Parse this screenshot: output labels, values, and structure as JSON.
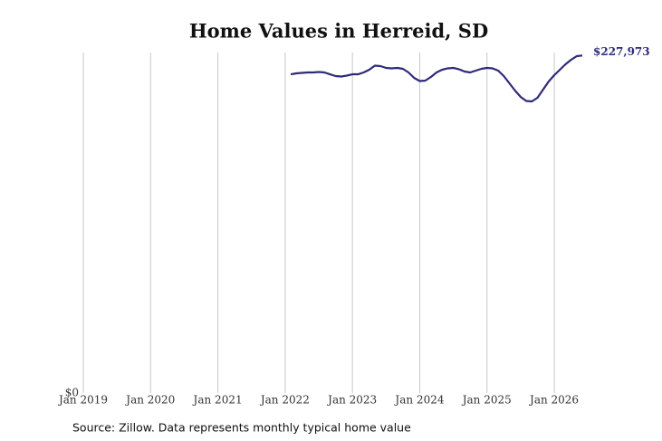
{
  "chart_data": {
    "type": "line",
    "title": "Home Values in Herreid, SD",
    "source": "Source: Zillow. Data represents monthly typical home value",
    "x": [
      "2022-02",
      "2022-03",
      "2022-04",
      "2022-05",
      "2022-06",
      "2022-07",
      "2022-08",
      "2022-09",
      "2022-10",
      "2022-11",
      "2022-12",
      "2023-01",
      "2023-02",
      "2023-03",
      "2023-04",
      "2023-05",
      "2023-06",
      "2023-07",
      "2023-08",
      "2023-09",
      "2023-10",
      "2023-11",
      "2023-12",
      "2024-01",
      "2024-02",
      "2024-03",
      "2024-04",
      "2024-05",
      "2024-06",
      "2024-07",
      "2024-08",
      "2024-09",
      "2024-10",
      "2024-11",
      "2024-12",
      "2025-01",
      "2025-02",
      "2025-03",
      "2025-04",
      "2025-05",
      "2025-06",
      "2025-07",
      "2025-08",
      "2025-09",
      "2025-10",
      "2025-11",
      "2025-12",
      "2026-01",
      "2026-02",
      "2026-03",
      "2026-04",
      "2026-05",
      "2026-06"
    ],
    "series": [
      {
        "name": "Home value",
        "color": "#2e2a7a",
        "values": [
          215300,
          215930,
          216240,
          216540,
          216540,
          216850,
          216540,
          215300,
          214100,
          213790,
          214400,
          215300,
          215300,
          216540,
          218380,
          221130,
          220820,
          219600,
          219300,
          219600,
          218990,
          216540,
          212870,
          210730,
          211040,
          213490,
          216540,
          218380,
          219300,
          219600,
          218690,
          217160,
          216540,
          217770,
          218990,
          219600,
          219300,
          217770,
          214100,
          209200,
          204310,
          200030,
          197270,
          196970,
          199410,
          204920,
          210420,
          214710,
          218380,
          222050,
          225110,
          227550,
          227973
        ],
        "value_labels": [
          null,
          null,
          null,
          null,
          null,
          null,
          null,
          null,
          null,
          null,
          null,
          null,
          null,
          null,
          null,
          null,
          null,
          null,
          null,
          null,
          null,
          null,
          null,
          null,
          null,
          null,
          null,
          null,
          null,
          null,
          null,
          null,
          null,
          null,
          null,
          null,
          null,
          null,
          null,
          null,
          null,
          null,
          null,
          null,
          null,
          null,
          null,
          null,
          null,
          null,
          null,
          null,
          "$227,973"
        ]
      }
    ],
    "xlim": [
      "2019-01",
      "2026-06"
    ],
    "xticks": [
      {
        "value": "2019-01",
        "label": "Jan 2019"
      },
      {
        "value": "2020-01",
        "label": "Jan 2020"
      },
      {
        "value": "2021-01",
        "label": "Jan 2021"
      },
      {
        "value": "2022-01",
        "label": "Jan 2022"
      },
      {
        "value": "2023-01",
        "label": "Jan 2023"
      },
      {
        "value": "2024-01",
        "label": "Jan 2024"
      },
      {
        "value": "2025-01",
        "label": "Jan 2025"
      },
      {
        "value": "2026-01",
        "label": "Jan 2026"
      }
    ],
    "ylim": [
      0,
      230000
    ],
    "yticks": [
      {
        "value": 0,
        "label": "$0"
      }
    ],
    "grid": "x"
  }
}
